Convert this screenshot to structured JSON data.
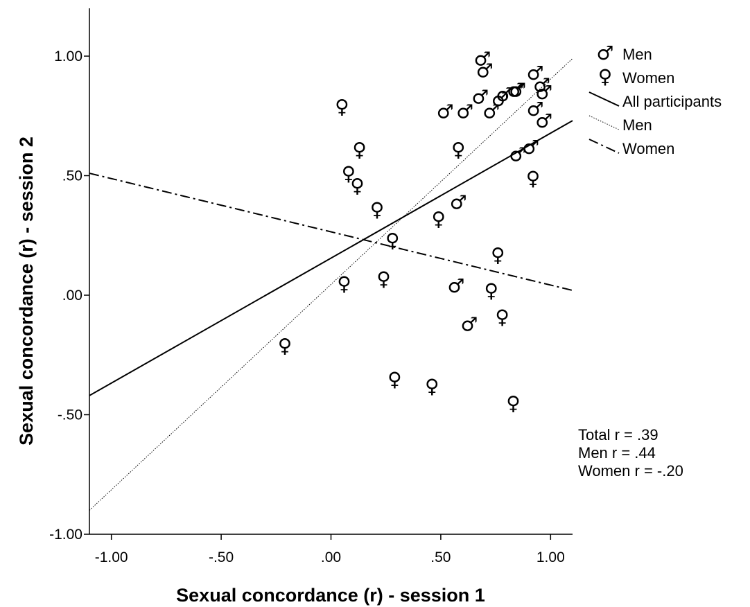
{
  "chart_data": {
    "type": "scatter",
    "title": "",
    "xlabel": "Sexual concordance (r) - session 1",
    "ylabel": "Sexual concordance (r) - session 2",
    "xlim": [
      -1.1,
      1.1
    ],
    "ylim": [
      -1.0,
      1.2
    ],
    "xticks": [
      -1.0,
      -0.5,
      0.0,
      0.5,
      1.0
    ],
    "xtick_labels": [
      "-1.00",
      "-.50",
      ".00",
      ".50",
      "1.00"
    ],
    "yticks": [
      -1.0,
      -0.5,
      0.0,
      0.5,
      1.0
    ],
    "ytick_labels": [
      "-1.00",
      "-.50",
      ".00",
      ".50",
      "1.00"
    ],
    "grid": false,
    "legend_position": "top-right",
    "marker_symbols": {
      "Men": "♂",
      "Women": "♀"
    },
    "series": [
      {
        "name": "Men",
        "kind": "scatter",
        "marker": "male-symbol",
        "points": [
          [
            0.69,
            0.99
          ],
          [
            0.7,
            0.94
          ],
          [
            0.68,
            0.83
          ],
          [
            0.77,
            0.82
          ],
          [
            0.79,
            0.84
          ],
          [
            0.84,
            0.86
          ],
          [
            0.85,
            0.86
          ],
          [
            0.93,
            0.93
          ],
          [
            0.96,
            0.88
          ],
          [
            0.97,
            0.85
          ],
          [
            0.52,
            0.77
          ],
          [
            0.61,
            0.77
          ],
          [
            0.73,
            0.77
          ],
          [
            0.93,
            0.78
          ],
          [
            0.97,
            0.73
          ],
          [
            0.85,
            0.59
          ],
          [
            0.91,
            0.62
          ],
          [
            0.58,
            0.39
          ],
          [
            0.57,
            0.04
          ],
          [
            0.63,
            -0.12
          ]
        ]
      },
      {
        "name": "Women",
        "kind": "scatter",
        "marker": "female-symbol",
        "points": [
          [
            0.05,
            0.79
          ],
          [
            0.13,
            0.61
          ],
          [
            0.58,
            0.61
          ],
          [
            0.08,
            0.51
          ],
          [
            0.12,
            0.46
          ],
          [
            0.92,
            0.49
          ],
          [
            0.21,
            0.36
          ],
          [
            0.49,
            0.32
          ],
          [
            0.28,
            0.23
          ],
          [
            0.76,
            0.17
          ],
          [
            0.06,
            0.05
          ],
          [
            0.24,
            0.07
          ],
          [
            0.73,
            0.02
          ],
          [
            0.78,
            -0.09
          ],
          [
            -0.21,
            -0.21
          ],
          [
            0.29,
            -0.35
          ],
          [
            0.46,
            -0.38
          ],
          [
            0.83,
            -0.45
          ]
        ]
      },
      {
        "name": "All participants",
        "kind": "line",
        "style": "solid",
        "x": [
          -1.1,
          1.1
        ],
        "y": [
          -0.42,
          0.73
        ]
      },
      {
        "name": "Men",
        "kind": "line",
        "style": "dotted",
        "x": [
          -1.1,
          1.1
        ],
        "y": [
          -0.9,
          0.99
        ]
      },
      {
        "name": "Women",
        "kind": "line",
        "style": "dash-dot",
        "x": [
          -1.1,
          1.1
        ],
        "y": [
          0.51,
          0.02
        ]
      }
    ],
    "annotations": [
      "Total r = .39",
      "Men r = .44",
      "Women r = -.20"
    ]
  }
}
